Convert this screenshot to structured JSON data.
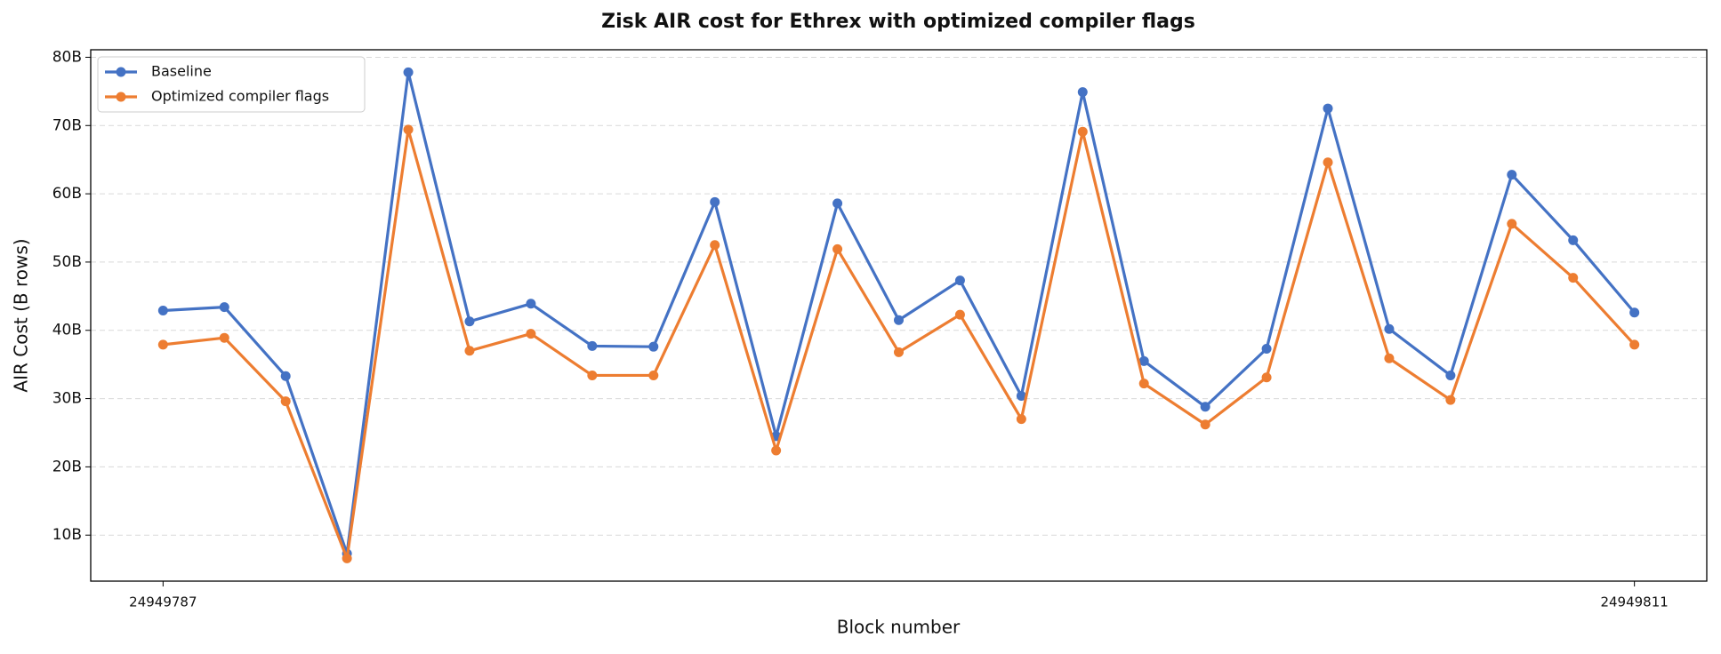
{
  "chart_data": {
    "type": "line",
    "title": "Zisk AIR cost for Ethrex with optimized compiler flags",
    "x_label": "Block number",
    "y_label": "AIR Cost (B rows)",
    "x": [
      24949787,
      24949788,
      24949789,
      24949790,
      24949791,
      24949792,
      24949793,
      24949794,
      24949795,
      24949796,
      24949797,
      24949798,
      24949799,
      24949800,
      24949801,
      24949802,
      24949803,
      24949804,
      24949805,
      24949806,
      24949807,
      24949808,
      24949809,
      24949810,
      24949811
    ],
    "series": [
      {
        "name": "Baseline",
        "color": "#4472c4",
        "values": [
          42.9,
          43.4,
          33.3,
          7.3,
          77.8,
          41.3,
          43.9,
          37.7,
          37.6,
          58.8,
          24.5,
          58.6,
          41.5,
          47.3,
          30.4,
          74.9,
          35.5,
          28.8,
          37.3,
          72.5,
          40.2,
          33.4,
          62.8,
          53.2,
          42.6
        ]
      },
      {
        "name": "Optimized compiler flags",
        "color": "#ed7d31",
        "values": [
          37.9,
          38.9,
          29.6,
          6.6,
          69.4,
          37.0,
          39.5,
          33.4,
          33.4,
          52.5,
          22.4,
          51.9,
          36.8,
          42.3,
          27.0,
          69.1,
          32.2,
          26.2,
          33.1,
          64.6,
          35.9,
          29.8,
          55.6,
          47.7,
          37.9
        ]
      }
    ],
    "xlim": [
      24949785.82,
      24949812.18
    ],
    "xticks": [
      24949787,
      24949811
    ],
    "ylim": [
      3.26,
      81.1
    ],
    "yticks": [
      {
        "value": 10,
        "label": "10B"
      },
      {
        "value": 20,
        "label": "20B"
      },
      {
        "value": 30,
        "label": "30B"
      },
      {
        "value": 40,
        "label": "40B"
      },
      {
        "value": 50,
        "label": "50B"
      },
      {
        "value": 60,
        "label": "60B"
      },
      {
        "value": 70,
        "label": "70B"
      },
      {
        "value": 80,
        "label": "80B"
      }
    ],
    "grid": true,
    "legend": "upper left"
  }
}
